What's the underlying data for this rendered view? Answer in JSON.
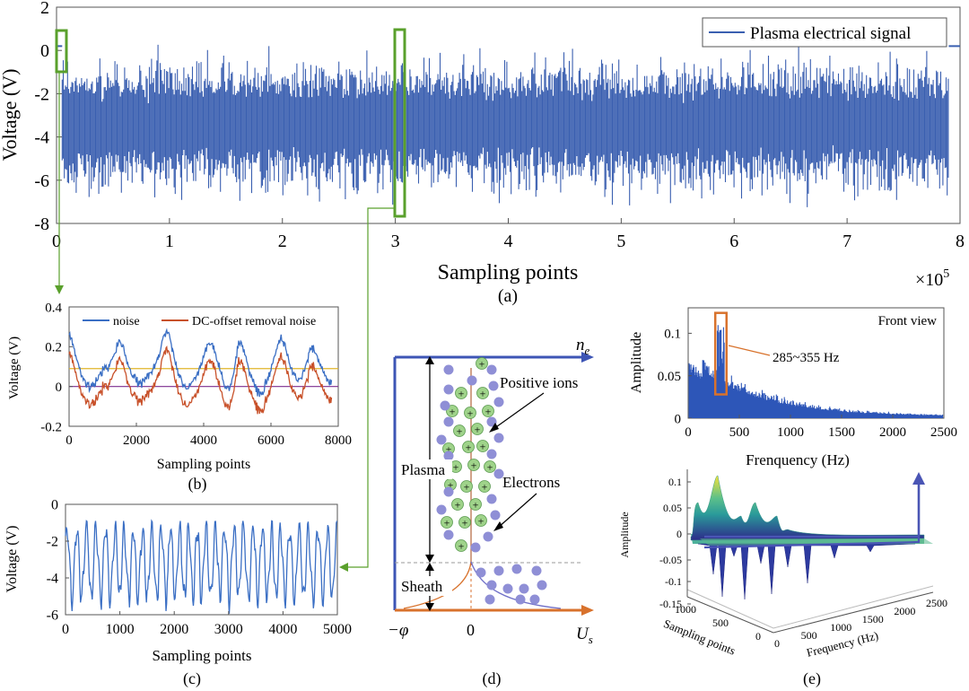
{
  "colors": {
    "signal": "#3a5fb0",
    "noise": "#3b6fc4",
    "dc_removed": "#c8512a",
    "highlight_box": "#5aa02c",
    "orange_box": "#d8722c",
    "axis_blue": "#3d55b5",
    "axis_orange": "#d8722c",
    "ion": "#9fd38a",
    "electron": "#8f8fd6",
    "level_yellow": "#e0b42a",
    "level_purple": "#7b2d8e"
  },
  "chart_data": [
    {
      "panel": "a",
      "type": "line",
      "caption": "(a)",
      "xlabel": "Sampling points",
      "ylabel": "Voltage (V)",
      "x_exponent": "×10",
      "x_exponent_power": "5",
      "xlim": [
        0,
        8
      ],
      "ylim": [
        -8,
        2
      ],
      "xticks": [
        "0",
        "1",
        "2",
        "3",
        "4",
        "5",
        "6",
        "7",
        "8"
      ],
      "yticks": [
        "2",
        "0",
        "-2",
        "-4",
        "-6",
        "-8"
      ],
      "legend": "Plasma electrical signal",
      "series": [
        {
          "name": "Plasma electrical signal",
          "center": -3.3,
          "min": -7.5,
          "max": 0.8,
          "start_flat": 0.2,
          "end_flat": 0.2
        }
      ],
      "highlight_ranges": [
        [
          0.0,
          0.08
        ],
        [
          3.0,
          3.07
        ]
      ]
    },
    {
      "panel": "b",
      "type": "line",
      "caption": "(b)",
      "xlabel": "Sampling points",
      "ylabel": "Voltage (V)",
      "xlim": [
        0,
        8000
      ],
      "ylim": [
        -0.2,
        0.4
      ],
      "xticks": [
        "0",
        "2000",
        "4000",
        "6000",
        "8000"
      ],
      "yticks": [
        "0.4",
        "0.2",
        "0",
        "-0.2"
      ],
      "legend": [
        "noise",
        "DC-offset removal noise"
      ],
      "series": [
        {
          "name": "noise",
          "mean": 0.09,
          "peaks_at": [
            0,
            1500,
            2900,
            4200,
            5050,
            6300,
            7200
          ],
          "peak_values": [
            0.25,
            0.22,
            0.28,
            0.22,
            0.29,
            0.24,
            0.22
          ],
          "trough_values": [
            0.0,
            0.02,
            0.0,
            -0.06,
            -0.03,
            0.02,
            0.02
          ]
        },
        {
          "name": "DC-offset removal noise",
          "mean": 0.0,
          "offset": -0.09
        }
      ],
      "reference_lines": [
        0.09,
        0.0
      ]
    },
    {
      "panel": "c",
      "type": "line",
      "caption": "(c)",
      "xlabel": "Sampling points",
      "ylabel": "Voltage (V)",
      "xlim": [
        0,
        5000
      ],
      "ylim": [
        -6,
        0
      ],
      "xticks": [
        "0",
        "1000",
        "2000",
        "3000",
        "4000",
        "5000"
      ],
      "yticks": [
        "0",
        "-2",
        "-4",
        "-6"
      ],
      "series": [
        {
          "name": "signal",
          "center": -3.2,
          "amplitude": 1.9,
          "cycles": 28
        }
      ]
    },
    {
      "panel": "d",
      "type": "diagram",
      "caption": "(d)",
      "x_axis_label": "U",
      "x_axis_sub": "s",
      "y_axis_label": "n",
      "y_axis_sub": "e",
      "x_origin_label": "−φ",
      "x_zero_label": "0",
      "labels": {
        "positive_ions": "Positive ions",
        "electrons": "Electrons",
        "plasma": "Plasma",
        "sheath": "Sheath"
      }
    },
    {
      "panel": "e_top",
      "type": "bar",
      "title": "Front view",
      "xlabel": "Frenquency (Hz)",
      "ylabel": "Amplitude",
      "xlim": [
        0,
        2500
      ],
      "ylim": [
        0,
        0.13
      ],
      "xticks": [
        "0",
        "500",
        "1000",
        "1500",
        "2000",
        "2500"
      ],
      "yticks": [
        "0.1",
        "0.05",
        "0"
      ],
      "annotation": "285~355 Hz",
      "highlight_range_hz": [
        285,
        355
      ],
      "peak_amplitude": 0.11
    },
    {
      "panel": "e_bottom",
      "type": "surface",
      "caption": "(e)",
      "xlabel": "Frequency (Hz)",
      "ylabel": "Sampling points",
      "zlabel": "Amplitude",
      "xticks": [
        "0",
        "500",
        "1000",
        "1500",
        "2000",
        "2500"
      ],
      "yticks": [
        "1000",
        "500",
        "0"
      ],
      "zticks": [
        "0.1",
        "0.05",
        "0",
        "-0.05",
        "-0.1",
        "-0.15"
      ]
    }
  ]
}
